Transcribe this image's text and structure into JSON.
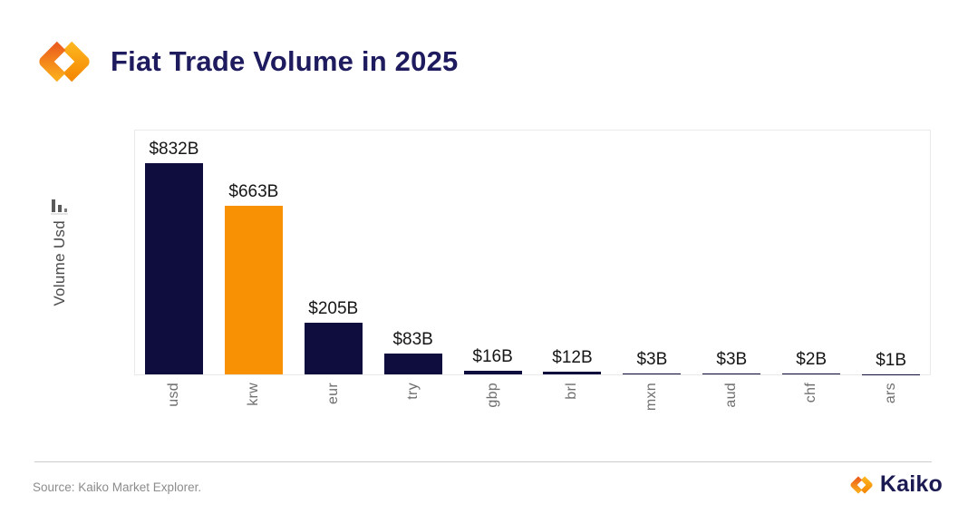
{
  "header": {
    "title": "Fiat Trade Volume in 2025"
  },
  "chart_data": {
    "type": "bar",
    "title": "Fiat Trade Volume in 2025",
    "ylabel": "Volume Usd",
    "xlabel": "",
    "categories": [
      "usd",
      "krw",
      "eur",
      "try",
      "gbp",
      "brl",
      "mxn",
      "aud",
      "chf",
      "ars"
    ],
    "values": [
      832,
      663,
      205,
      83,
      16,
      12,
      3,
      3,
      2,
      1
    ],
    "value_labels": [
      "$832B",
      "$663B",
      "$205B",
      "$83B",
      "$16B",
      "$12B",
      "$3B",
      "$3B",
      "$2B",
      "$1B"
    ],
    "ylim": [
      0,
      964
    ],
    "grid": false,
    "legend": false,
    "bar_color_default": "#0e0d3e",
    "bar_color_highlight": "#f99104",
    "highlight_index": 1
  },
  "footer": {
    "source": "Source: Kaiko Market Explorer.",
    "brand_name": "Kaiko"
  },
  "colors": {
    "title_navy": "#1e1b5e",
    "bar_navy": "#0e0d3e",
    "bar_orange": "#f99104",
    "axis_text": "#6f6f6f",
    "y_label_text": "#4a4a4a",
    "value_text": "#161616",
    "plot_border": "#eaeaea",
    "divider": "#cccccc",
    "source_text": "#8c8c8c",
    "logo_orange_light": "#fcb31d",
    "logo_orange_dark": "#f68a05",
    "logo_red_orange": "#ec601d"
  }
}
